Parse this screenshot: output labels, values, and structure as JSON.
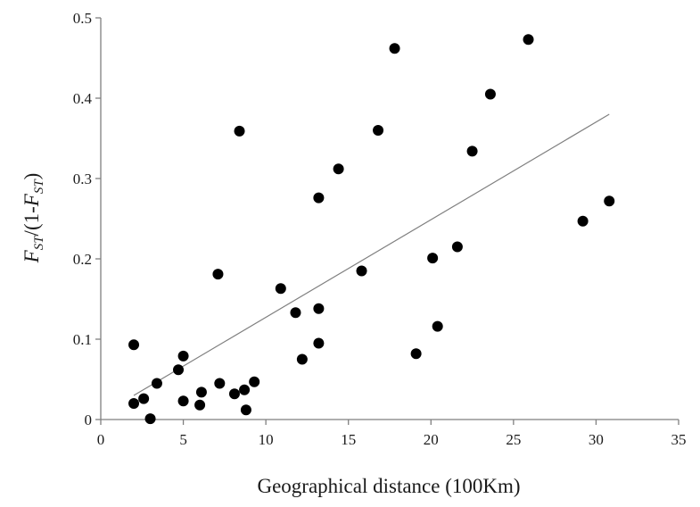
{
  "chart_data": {
    "type": "scatter",
    "xlabel": "Geographical distance (100Km)",
    "ylabel": {
      "parts": [
        {
          "text": "F",
          "italic": true,
          "sub": false
        },
        {
          "text": "ST",
          "italic": true,
          "sub": true
        },
        {
          "text": "/(1-",
          "italic": false,
          "sub": false
        },
        {
          "text": "F",
          "italic": true,
          "sub": false
        },
        {
          "text": "ST",
          "italic": true,
          "sub": true
        },
        {
          "text": ")",
          "italic": false,
          "sub": false
        }
      ]
    },
    "xlim": [
      0,
      35
    ],
    "ylim": [
      0,
      0.5
    ],
    "xticks": [
      0,
      5,
      10,
      15,
      20,
      25,
      30,
      35
    ],
    "xtick_labels": [
      "0",
      "5",
      "10",
      "15",
      "20",
      "25",
      "30",
      "35"
    ],
    "yticks": [
      0,
      0.1,
      0.2,
      0.3,
      0.4,
      0.5
    ],
    "ytick_labels": [
      "0",
      "0.1",
      "0.2",
      "0.3",
      "0.4",
      "0.5"
    ],
    "grid": false,
    "legend": "none",
    "colors": {
      "points": "#000000",
      "trendline": "#7f7f7f",
      "axes": "#7f7f7f"
    },
    "points": [
      {
        "x": 2.0,
        "y": 0.093
      },
      {
        "x": 2.0,
        "y": 0.02
      },
      {
        "x": 2.6,
        "y": 0.026
      },
      {
        "x": 3.0,
        "y": 0.001
      },
      {
        "x": 3.4,
        "y": 0.045
      },
      {
        "x": 4.7,
        "y": 0.062
      },
      {
        "x": 5.0,
        "y": 0.079
      },
      {
        "x": 5.0,
        "y": 0.023
      },
      {
        "x": 6.0,
        "y": 0.018
      },
      {
        "x": 6.1,
        "y": 0.034
      },
      {
        "x": 7.1,
        "y": 0.181
      },
      {
        "x": 7.2,
        "y": 0.045
      },
      {
        "x": 8.1,
        "y": 0.032
      },
      {
        "x": 8.4,
        "y": 0.359
      },
      {
        "x": 8.7,
        "y": 0.037
      },
      {
        "x": 8.8,
        "y": 0.012
      },
      {
        "x": 9.3,
        "y": 0.047
      },
      {
        "x": 10.9,
        "y": 0.163
      },
      {
        "x": 11.8,
        "y": 0.133
      },
      {
        "x": 12.2,
        "y": 0.075
      },
      {
        "x": 13.2,
        "y": 0.276
      },
      {
        "x": 13.2,
        "y": 0.138
      },
      {
        "x": 13.2,
        "y": 0.095
      },
      {
        "x": 14.4,
        "y": 0.312
      },
      {
        "x": 15.8,
        "y": 0.185
      },
      {
        "x": 16.8,
        "y": 0.36
      },
      {
        "x": 17.8,
        "y": 0.462
      },
      {
        "x": 19.1,
        "y": 0.082
      },
      {
        "x": 20.1,
        "y": 0.201
      },
      {
        "x": 20.4,
        "y": 0.116
      },
      {
        "x": 21.6,
        "y": 0.215
      },
      {
        "x": 22.5,
        "y": 0.334
      },
      {
        "x": 23.6,
        "y": 0.405
      },
      {
        "x": 25.9,
        "y": 0.473
      },
      {
        "x": 29.2,
        "y": 0.247
      },
      {
        "x": 30.8,
        "y": 0.272
      }
    ],
    "trendline": {
      "x": [
        2.0,
        30.8
      ],
      "y": [
        0.03,
        0.38
      ]
    }
  }
}
